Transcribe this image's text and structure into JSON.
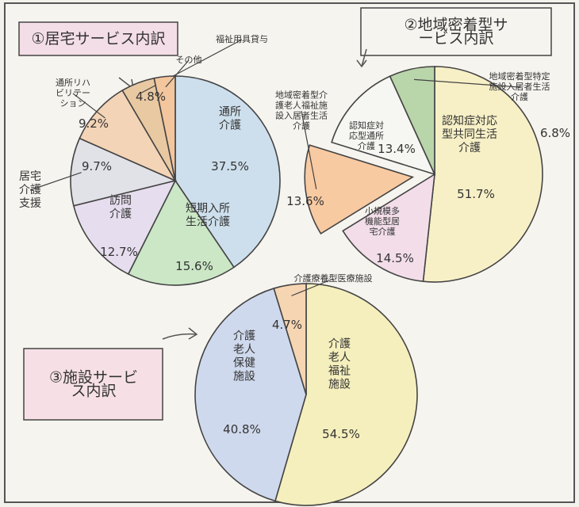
{
  "chart_data": [
    {
      "type": "pie",
      "title": "①居宅サービス内訳",
      "categories": [
        "通所介護",
        "短期入所生活介護",
        "訪問介護",
        "居宅介護支援",
        "通所リハビリテーション",
        "福祉用具貸与",
        "その他"
      ],
      "values": [
        37.5,
        15.6,
        12.7,
        9.7,
        9.2,
        4.8,
        3
      ],
      "value_labels": [
        "37.5%",
        "15.6%",
        "12.7%",
        "9.7%",
        "9.2%",
        "4.8%",
        null
      ],
      "colors": [
        "#cddfec",
        "#cbe7c6",
        "#e6ddee",
        "#e1e1e8",
        "#f4d4b6",
        "#e9c9a2",
        "#f3c69d"
      ]
    },
    {
      "type": "pie",
      "title": "②地域密着型サービス内訳",
      "categories": [
        "認知症対応型共同生活介護",
        "小規模多機能型居宅介護",
        "地域密着型介護老人福祉施設入居者生活介護",
        "認知症対応型通所介護",
        "地域密着型特定施設入居者生活介護"
      ],
      "values": [
        51.7,
        14.5,
        13.6,
        13.4,
        6.8
      ],
      "value_labels": [
        "51.7%",
        "14.5%",
        "13.6%",
        "13.4%",
        "6.8%"
      ],
      "colors": [
        "#f7f0c6",
        "#f2dde9",
        "#f8caa2",
        "#f6f6f2",
        "#b9d5aa"
      ]
    },
    {
      "type": "pie",
      "title": "③施設サービス内訳",
      "categories": [
        "介護老人福祉施設",
        "介護老人保健施設",
        "介護療養型医療施設"
      ],
      "values": [
        54.5,
        40.8,
        4.7
      ],
      "value_labels": [
        "54.5%",
        "40.8%",
        "4.7%"
      ],
      "colors": [
        "#f5efbd",
        "#cfd9ed",
        "#f6d5b2"
      ]
    }
  ]
}
